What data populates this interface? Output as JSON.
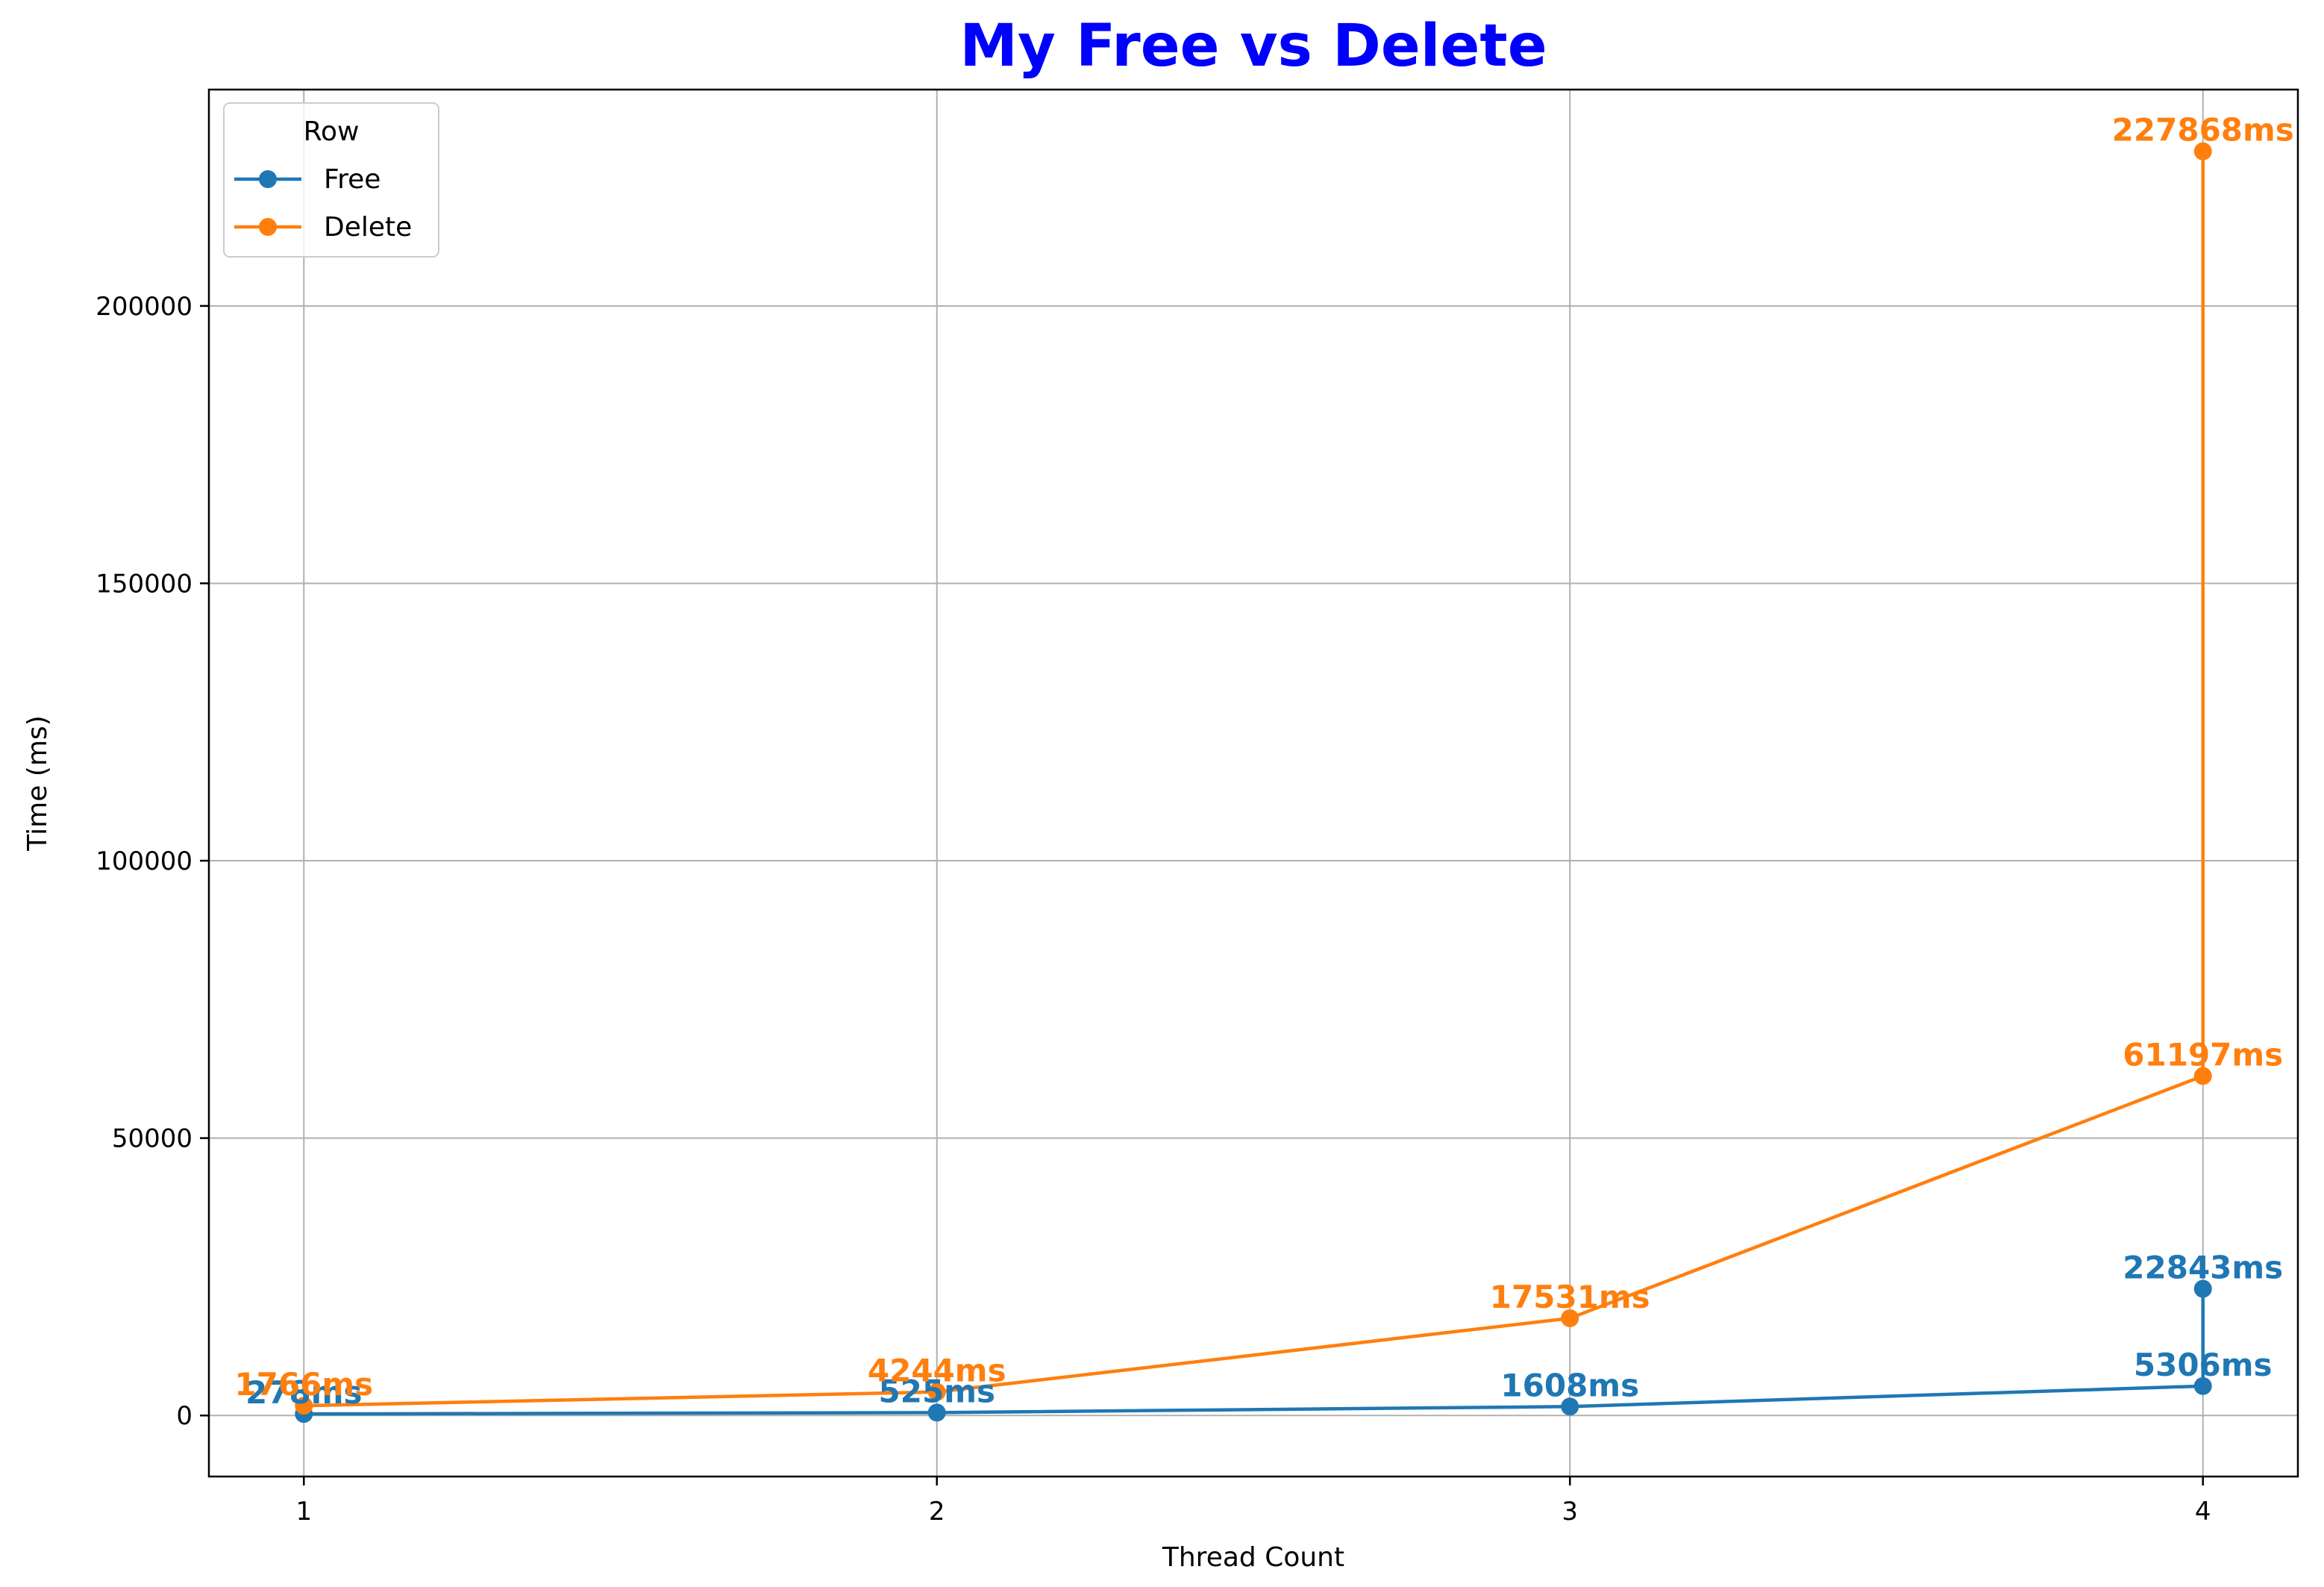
{
  "chart_data": {
    "type": "line",
    "title": "My Free vs Delete",
    "title_color": "#0000ff",
    "xlabel": "Thread Count",
    "ylabel": "Time (ms)",
    "xlim": [
      0.85,
      4.15
    ],
    "ylim": [
      -11000,
      239000
    ],
    "x_ticks": [
      1,
      2,
      3,
      4
    ],
    "y_ticks": [
      0,
      50000,
      100000,
      150000,
      200000
    ],
    "grid": true,
    "legend": {
      "title": "Row",
      "location": "top-left"
    },
    "series": [
      {
        "name": "Free",
        "color": "#1f77b4",
        "points": [
          {
            "x": 1,
            "y": 278,
            "label": "278ms"
          },
          {
            "x": 2,
            "y": 525,
            "label": "525ms"
          },
          {
            "x": 3,
            "y": 1608,
            "label": "1608ms"
          },
          {
            "x": 4,
            "y": 5306,
            "label": "5306ms"
          },
          {
            "x": 4,
            "y": 22843,
            "label": "22843ms"
          }
        ]
      },
      {
        "name": "Delete",
        "color": "#ff7f0e",
        "points": [
          {
            "x": 1,
            "y": 1766,
            "label": "1766ms"
          },
          {
            "x": 2,
            "y": 4244,
            "label": "4244ms"
          },
          {
            "x": 3,
            "y": 17531,
            "label": "17531ms"
          },
          {
            "x": 4,
            "y": 61197,
            "label": "61197ms"
          },
          {
            "x": 4,
            "y": 227868,
            "label": "227868ms"
          }
        ]
      }
    ]
  }
}
